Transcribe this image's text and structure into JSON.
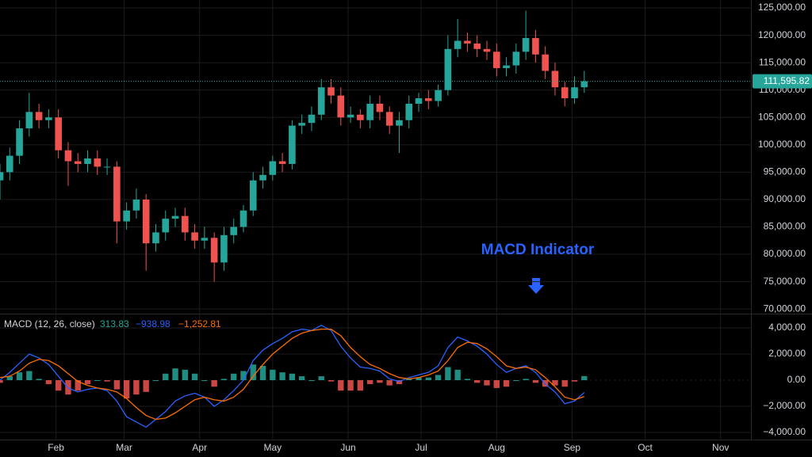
{
  "chart_data": {
    "type": "candlestick",
    "up_color": "#26a69a",
    "down_color": "#ef5350",
    "grid": true,
    "annotation": "MACD Indicator",
    "annotation_color": "#2962ff",
    "last_price_label": "111,595.82",
    "xlim": [
      0,
      308.8
    ],
    "xticks": [
      {
        "value": 23,
        "label": "Feb"
      },
      {
        "value": 51,
        "label": "Mar"
      },
      {
        "value": 82,
        "label": "Apr"
      },
      {
        "value": 112,
        "label": "May"
      },
      {
        "value": 143,
        "label": "Jun"
      },
      {
        "value": 173,
        "label": "Jul"
      },
      {
        "value": 204,
        "label": "Aug"
      },
      {
        "value": 235,
        "label": "Sep"
      },
      {
        "value": 265,
        "label": "Oct"
      },
      {
        "value": 296,
        "label": "Nov"
      }
    ],
    "ylim": [
      69300,
      126450
    ],
    "yticks": [
      {
        "value": 70000,
        "label": "70,000.00"
      },
      {
        "value": 75000,
        "label": "75,000.00"
      },
      {
        "value": 80000,
        "label": "80,000.00"
      },
      {
        "value": 85000,
        "label": "85,000.00"
      },
      {
        "value": 90000,
        "label": "90,000.00"
      },
      {
        "value": 95000,
        "label": "95,000.00"
      },
      {
        "value": 100000,
        "label": "100,000.00"
      },
      {
        "value": 105000,
        "label": "105,000.00"
      },
      {
        "value": 110000,
        "label": "110,000.00"
      },
      {
        "value": 115000,
        "label": "115,000.00"
      },
      {
        "value": 120000,
        "label": "120,000.00"
      },
      {
        "value": 125000,
        "label": "125,000.00"
      }
    ],
    "x": [
      0,
      4,
      8,
      12,
      16,
      20,
      24,
      28,
      32,
      36,
      40,
      44,
      48,
      52,
      56,
      60,
      64,
      68,
      72,
      76,
      80,
      84,
      88,
      92,
      96,
      100,
      104,
      108,
      112,
      116,
      120,
      124,
      128,
      132,
      136,
      140,
      144,
      148,
      152,
      156,
      160,
      164,
      168,
      172,
      176,
      180,
      184,
      188,
      192,
      196,
      200,
      204,
      208,
      212,
      216,
      220,
      224,
      228,
      232,
      236,
      240
    ],
    "open": [
      93500,
      95000,
      98000,
      103000,
      106000,
      104500,
      105000,
      99000,
      97000,
      96500,
      97500,
      96000,
      96000,
      86000,
      88000,
      90000,
      82000,
      84000,
      86500,
      87000,
      84000,
      82500,
      83000,
      78500,
      83500,
      85000,
      88000,
      93500,
      94500,
      97000,
      96500,
      103500,
      104000,
      105500,
      110500,
      109000,
      105000,
      105500,
      104500,
      107500,
      106000,
      103500,
      104500,
      107500,
      108500,
      108000,
      110000,
      117500,
      119000,
      118500,
      117500,
      117000,
      114000,
      114500,
      117000,
      119500,
      116500,
      113500,
      110500,
      108500,
      110500
    ],
    "high": [
      96500,
      99500,
      104500,
      109500,
      107500,
      106500,
      106500,
      100500,
      98500,
      99000,
      99000,
      97500,
      97000,
      89500,
      92000,
      91000,
      85500,
      88000,
      88500,
      88500,
      85500,
      85000,
      84000,
      85000,
      86500,
      89000,
      95000,
      96000,
      98000,
      98500,
      104500,
      105500,
      107000,
      112000,
      112000,
      110500,
      107000,
      106500,
      109000,
      109000,
      107000,
      106000,
      109000,
      109500,
      110000,
      111000,
      120000,
      123000,
      120500,
      120000,
      119000,
      118500,
      116000,
      118500,
      124500,
      121000,
      118000,
      115000,
      111500,
      112500,
      113500
    ],
    "low": [
      90000,
      93500,
      96500,
      101500,
      103000,
      103000,
      97500,
      92500,
      95000,
      95000,
      94500,
      94500,
      82000,
      84500,
      86500,
      77000,
      80500,
      82500,
      85000,
      82500,
      81000,
      81000,
      75000,
      77000,
      82000,
      84000,
      87000,
      92000,
      93500,
      95000,
      95500,
      102000,
      102500,
      104500,
      107500,
      103500,
      104000,
      103000,
      103000,
      104500,
      102000,
      98500,
      103000,
      106000,
      106500,
      107000,
      109000,
      116000,
      117000,
      116000,
      115500,
      112500,
      112500,
      113000,
      115500,
      115000,
      112000,
      109000,
      107000,
      107500,
      109500
    ],
    "close": [
      95000,
      98000,
      103000,
      106000,
      104500,
      105000,
      99000,
      97000,
      96500,
      97500,
      96000,
      96000,
      86000,
      88000,
      90000,
      82000,
      84000,
      86500,
      87000,
      84000,
      82500,
      83000,
      78500,
      83500,
      85000,
      88000,
      93500,
      94500,
      97000,
      96500,
      103500,
      104000,
      105500,
      110500,
      109000,
      105000,
      105500,
      104500,
      107500,
      106000,
      103500,
      104500,
      107500,
      108500,
      108000,
      110000,
      117500,
      119000,
      118500,
      117500,
      117000,
      114000,
      114500,
      117000,
      119500,
      116500,
      113500,
      110500,
      108500,
      110500,
      111595.82
    ],
    "indicator": {
      "title": "MACD (12, 26, close)",
      "ylim": [
        -4545,
        4970
      ],
      "yticks": [
        {
          "value": -4000,
          "label": "−4,000.00"
        },
        {
          "value": -2000,
          "label": "−2,000.00"
        },
        {
          "value": 0,
          "label": "0.00"
        },
        {
          "value": 2000,
          "label": "2,000.00"
        },
        {
          "value": 4000,
          "label": "4,000.00"
        }
      ],
      "histogram": {
        "up_color": "#26a69a",
        "down_color": "#ef5350",
        "last_label": "313.83",
        "values": [
          -200,
          300,
          600,
          700,
          100,
          -300,
          -800,
          -1100,
          -800,
          -300,
          0,
          -100,
          -700,
          -1400,
          -1100,
          -900,
          0,
          500,
          900,
          800,
          500,
          0,
          -500,
          100,
          500,
          700,
          1200,
          1100,
          800,
          600,
          500,
          300,
          0,
          300,
          -100,
          -800,
          -800,
          -800,
          -300,
          -200,
          -400,
          -300,
          100,
          200,
          200,
          400,
          1000,
          800,
          100,
          -200,
          -400,
          -600,
          -500,
          0,
          100,
          -200,
          -500,
          -400,
          -500,
          -100,
          313.83
        ]
      },
      "series": [
        {
          "color": "#2962ff",
          "last_label": "−938.98",
          "values": [
            0,
            600,
            1300,
            2000,
            1700,
            1200,
            300,
            -600,
            -900,
            -700,
            -600,
            -800,
            -1600,
            -2800,
            -3200,
            -3600,
            -3000,
            -2400,
            -1600,
            -1200,
            -1000,
            -1300,
            -2000,
            -1500,
            -800,
            0,
            1500,
            2300,
            2800,
            3200,
            3700,
            3900,
            3800,
            4200,
            3800,
            2600,
            1700,
            1000,
            900,
            700,
            100,
            -100,
            200,
            400,
            600,
            1100,
            2500,
            3300,
            3000,
            2600,
            2000,
            1200,
            600,
            900,
            1100,
            600,
            -300,
            -900,
            -1800,
            -1600,
            -938.98
          ]
        },
        {
          "color": "#ff6d00",
          "last_label": "−1,252.81",
          "values": [
            200,
            300,
            700,
            1300,
            1600,
            1500,
            1100,
            500,
            -100,
            -400,
            -600,
            -700,
            -900,
            -1400,
            -2100,
            -2700,
            -3000,
            -2900,
            -2500,
            -2000,
            -1500,
            -1300,
            -1500,
            -1600,
            -1300,
            -700,
            300,
            1200,
            2000,
            2600,
            3200,
            3600,
            3800,
            3900,
            3900,
            3400,
            2500,
            1800,
            1200,
            900,
            500,
            200,
            100,
            200,
            400,
            700,
            1500,
            2500,
            2900,
            2800,
            2400,
            1800,
            1100,
            900,
            1000,
            800,
            200,
            -500,
            -1300,
            -1500,
            -1252.81
          ]
        }
      ]
    }
  }
}
